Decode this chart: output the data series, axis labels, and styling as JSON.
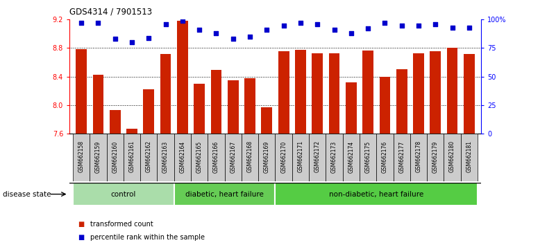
{
  "title": "GDS4314 / 7901513",
  "samples": [
    "GSM662158",
    "GSM662159",
    "GSM662160",
    "GSM662161",
    "GSM662162",
    "GSM662163",
    "GSM662164",
    "GSM662165",
    "GSM662166",
    "GSM662167",
    "GSM662168",
    "GSM662169",
    "GSM662170",
    "GSM662171",
    "GSM662172",
    "GSM662173",
    "GSM662174",
    "GSM662175",
    "GSM662176",
    "GSM662177",
    "GSM662178",
    "GSM662179",
    "GSM662180",
    "GSM662181"
  ],
  "transformed_count": [
    8.79,
    8.43,
    7.93,
    7.67,
    8.22,
    8.72,
    9.18,
    8.3,
    8.49,
    8.35,
    8.38,
    7.97,
    8.76,
    8.78,
    8.73,
    8.73,
    8.32,
    8.77,
    8.4,
    8.5,
    8.73,
    8.76,
    8.8,
    8.72
  ],
  "percentile": [
    97,
    97,
    83,
    80,
    84,
    96,
    99,
    91,
    88,
    83,
    85,
    91,
    95,
    97,
    96,
    91,
    88,
    92,
    97,
    95,
    95,
    96,
    93,
    93
  ],
  "groups": [
    {
      "label": "control",
      "start": 0,
      "end": 6,
      "color": "#aaddaa"
    },
    {
      "label": "diabetic, heart failure",
      "start": 6,
      "end": 12,
      "color": "#66cc55"
    },
    {
      "label": "non-diabetic, heart failure",
      "start": 12,
      "end": 24,
      "color": "#55cc44"
    }
  ],
  "ylim_left": [
    7.6,
    9.2
  ],
  "ylim_right": [
    0,
    100
  ],
  "yticks_left": [
    7.6,
    8.0,
    8.4,
    8.8,
    9.2
  ],
  "yticks_right": [
    0,
    25,
    50,
    75,
    100
  ],
  "ytick_labels_right": [
    "0",
    "25",
    "50",
    "75",
    "100%"
  ],
  "grid_values": [
    8.0,
    8.4,
    8.8
  ],
  "bar_color": "#cc2200",
  "dot_color": "#0000cc",
  "bar_width": 0.65,
  "legend_bar_label": "transformed count",
  "legend_dot_label": "percentile rank within the sample",
  "disease_state_label": "disease state",
  "tick_bg_color": "#cccccc"
}
